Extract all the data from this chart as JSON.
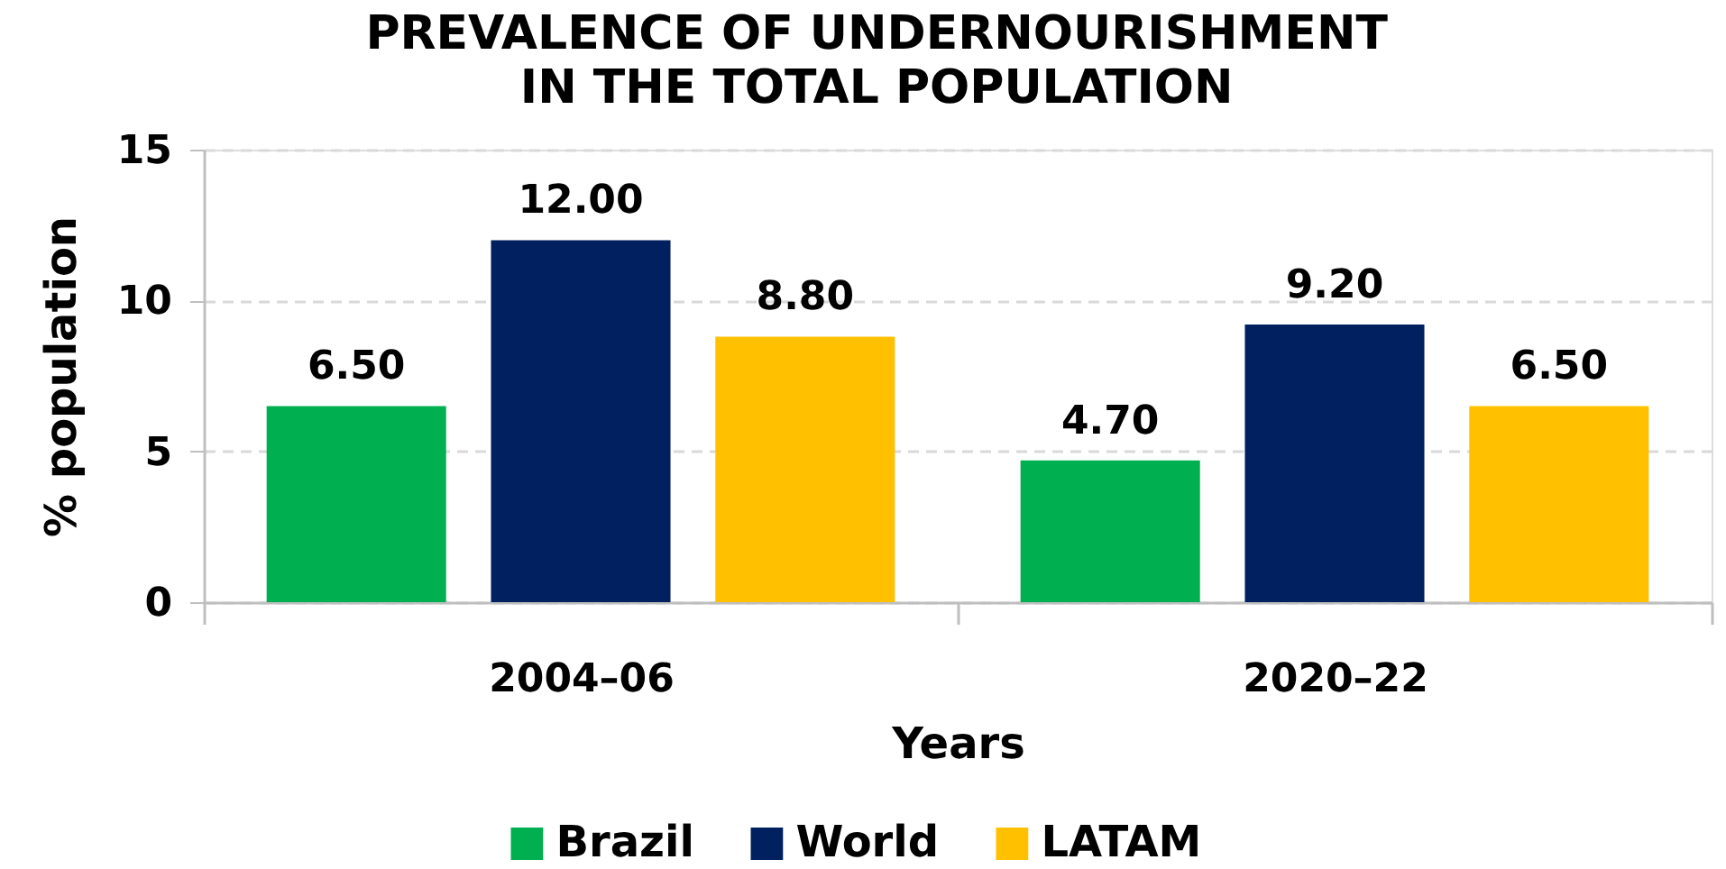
{
  "chart_data": {
    "type": "bar",
    "title": "PREVALENCE OF UNDERNOURISHMENT\nIN THE TOTAL POPULATION",
    "xlabel": "Years",
    "ylabel": "% population",
    "categories": [
      "2004–06",
      "2020–22"
    ],
    "series": [
      {
        "name": "Brazil",
        "color": "#00b050",
        "values": [
          6.5,
          4.7
        ],
        "value_labels": [
          "6.50",
          "4.70"
        ]
      },
      {
        "name": "World",
        "color": "#002060",
        "values": [
          12.0,
          9.2
        ],
        "value_labels": [
          "12.00",
          "9.20"
        ]
      },
      {
        "name": "LATAM",
        "color": "#ffc000",
        "values": [
          8.8,
          6.5
        ],
        "value_labels": [
          "8.80",
          "6.50"
        ]
      }
    ],
    "ylim": [
      0,
      15
    ],
    "yticks": [
      0,
      5,
      10,
      15
    ],
    "grid": "y",
    "legend": "bottom"
  }
}
